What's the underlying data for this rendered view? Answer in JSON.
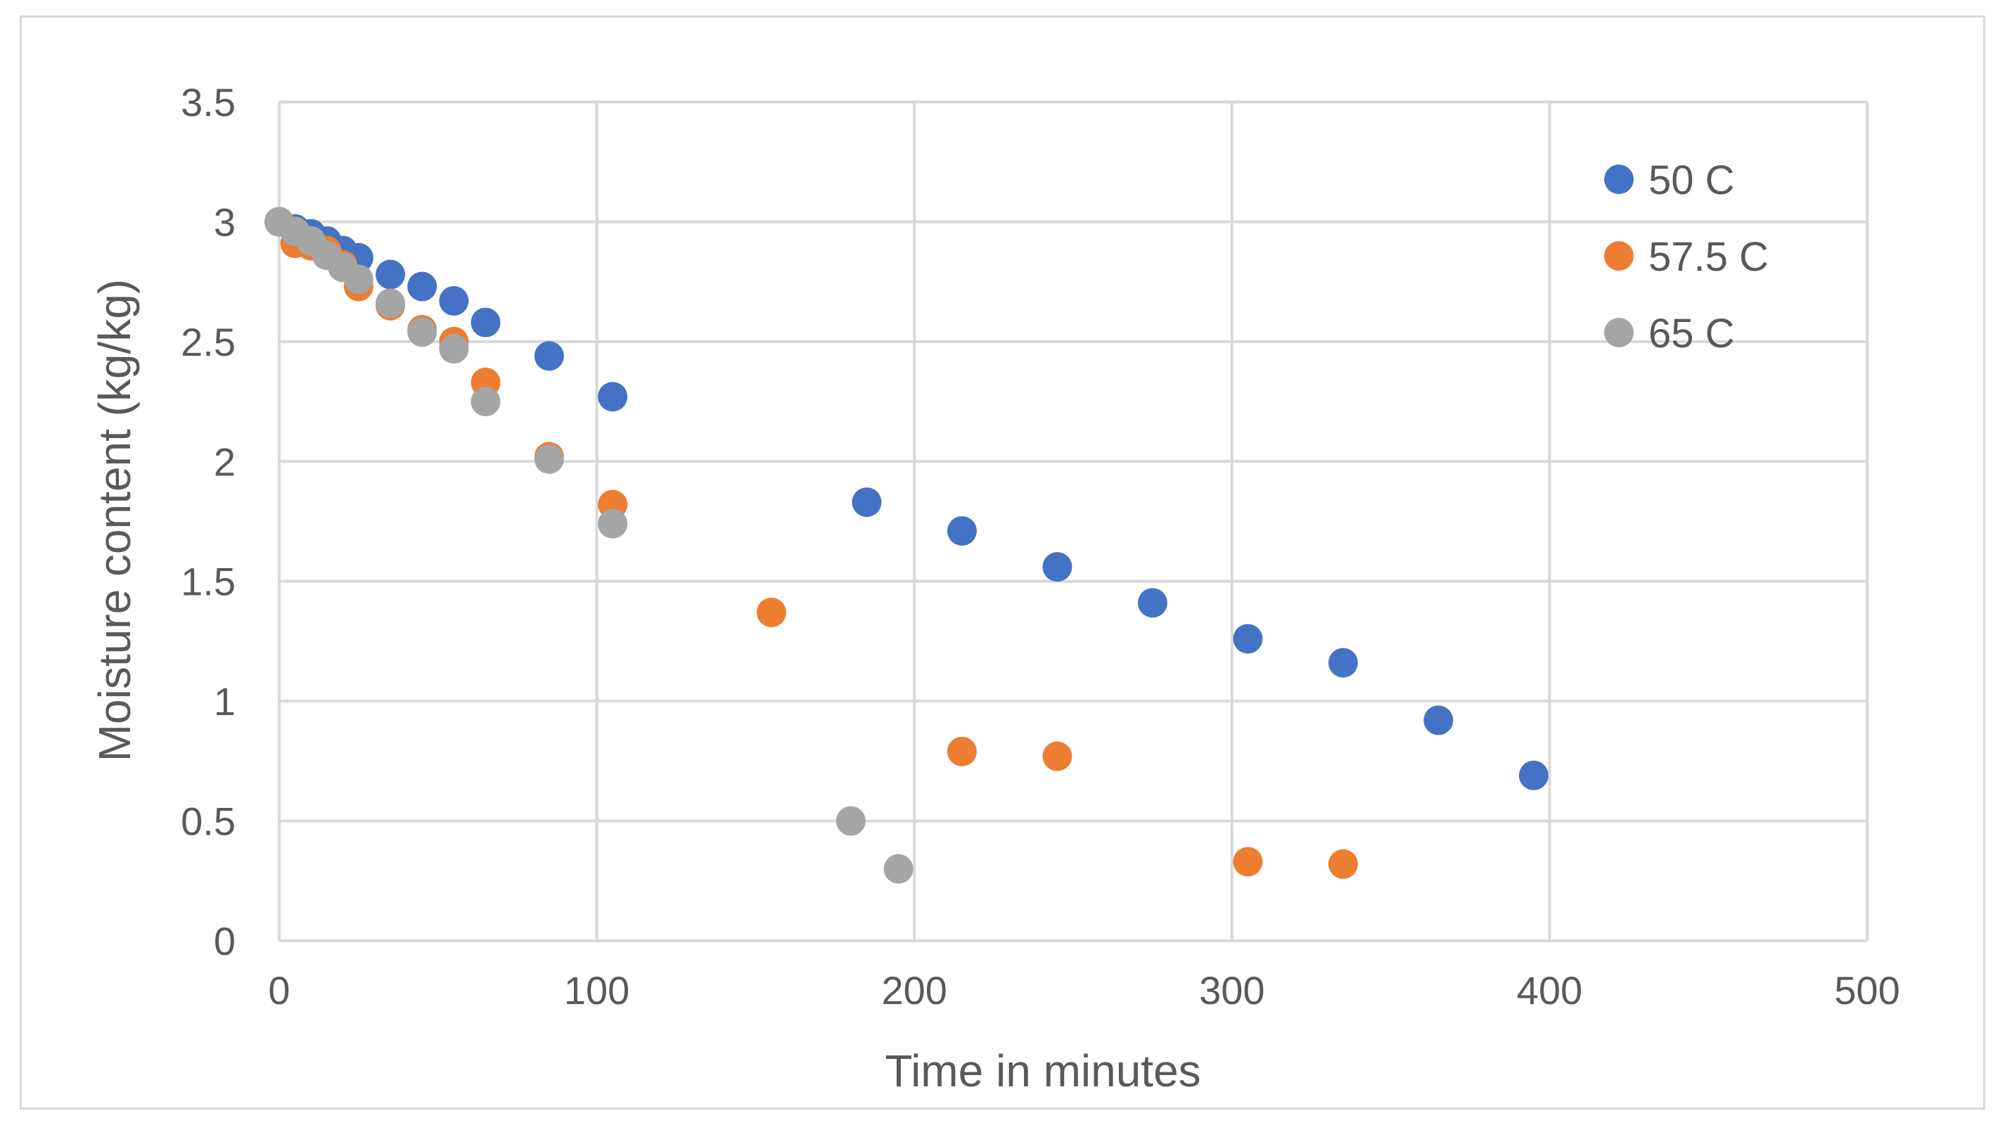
{
  "chart_data": {
    "type": "scatter",
    "xlabel": "Time in minutes",
    "ylabel": "Moisture content (kg/kg)",
    "xlim": [
      0,
      500
    ],
    "ylim": [
      0,
      3.5
    ],
    "xticks": [
      0,
      100,
      200,
      300,
      400,
      500
    ],
    "yticks": [
      0,
      0.5,
      1,
      1.5,
      2,
      2.5,
      3,
      3.5
    ],
    "xtick_labels": [
      "0",
      "100",
      "200",
      "300",
      "400",
      "500"
    ],
    "ytick_labels": [
      "0",
      "0.5",
      "1",
      "1.5",
      "2",
      "2.5",
      "3",
      "3.5"
    ],
    "grid": true,
    "legend_position": "right",
    "series": [
      {
        "name": "50 C",
        "color": "#4472c4",
        "points": [
          [
            0,
            3.0
          ],
          [
            5,
            2.97
          ],
          [
            10,
            2.95
          ],
          [
            15,
            2.92
          ],
          [
            20,
            2.88
          ],
          [
            25,
            2.85
          ],
          [
            35,
            2.78
          ],
          [
            45,
            2.73
          ],
          [
            55,
            2.67
          ],
          [
            65,
            2.58
          ],
          [
            85,
            2.44
          ],
          [
            105,
            2.27
          ],
          [
            185,
            1.83
          ],
          [
            215,
            1.71
          ],
          [
            245,
            1.56
          ],
          [
            275,
            1.41
          ],
          [
            305,
            1.26
          ],
          [
            335,
            1.16
          ],
          [
            365,
            0.92
          ],
          [
            395,
            0.69
          ]
        ]
      },
      {
        "name": "57.5 C",
        "color": "#ed7d31",
        "points": [
          [
            0,
            3.0
          ],
          [
            5,
            2.91
          ],
          [
            10,
            2.9
          ],
          [
            15,
            2.88
          ],
          [
            20,
            2.82
          ],
          [
            25,
            2.73
          ],
          [
            35,
            2.65
          ],
          [
            45,
            2.55
          ],
          [
            55,
            2.5
          ],
          [
            65,
            2.33
          ],
          [
            85,
            2.02
          ],
          [
            105,
            1.82
          ],
          [
            155,
            1.37
          ],
          [
            215,
            0.79
          ],
          [
            245,
            0.77
          ],
          [
            305,
            0.33
          ],
          [
            335,
            0.32
          ]
        ]
      },
      {
        "name": "65 C",
        "color": "#a5a5a5",
        "points": [
          [
            0,
            3.0
          ],
          [
            5,
            2.96
          ],
          [
            10,
            2.92
          ],
          [
            15,
            2.86
          ],
          [
            20,
            2.81
          ],
          [
            25,
            2.76
          ],
          [
            35,
            2.66
          ],
          [
            45,
            2.54
          ],
          [
            55,
            2.47
          ],
          [
            65,
            2.25
          ],
          [
            85,
            2.01
          ],
          [
            105,
            1.74
          ],
          [
            180,
            0.5
          ],
          [
            195,
            0.3
          ]
        ]
      }
    ]
  }
}
